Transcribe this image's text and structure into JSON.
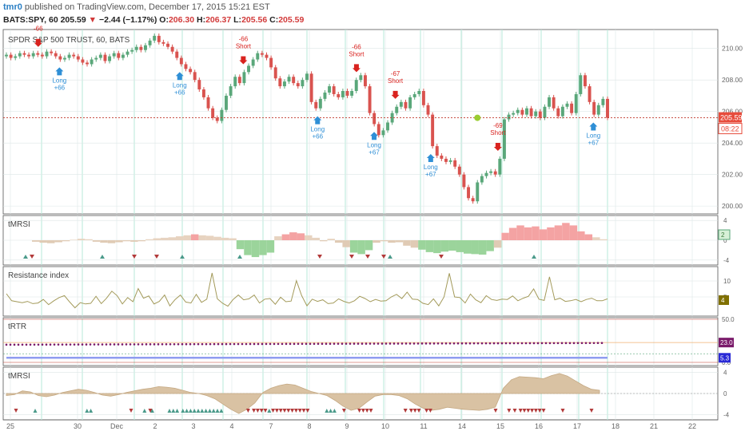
{
  "header": {
    "author": "tmr0",
    "published": "published on TradingView.com, December 17, 2015 15:21 EST",
    "symbol": "BATS:SPY, 60",
    "last": "205.59",
    "arrow": "▼",
    "change": "−2.44 (−1.17%)",
    "o_label": "O:",
    "o_value": "206.30",
    "h_label": "H:",
    "h_value": "206.37",
    "l_label": "L:",
    "l_value": "205.56",
    "c_label": "C:",
    "c_value": "205.59"
  },
  "colors": {
    "up": "#5aa77a",
    "down": "#d9534f",
    "grid": "#dde6e6",
    "buy_arrow": "#2f8fd6",
    "sell_arrow": "#d9231f",
    "vline": "#b7ead9"
  },
  "chart_data": [
    {
      "type": "candlestick",
      "title": "SPDR S&P 500 TRUST, 60, BATS",
      "ylim": [
        199.5,
        211.2
      ],
      "yticks": [
        "210.00",
        "208.00",
        "206.00",
        "204.00",
        "202.00",
        "200.00"
      ],
      "ytick_values": [
        210,
        208,
        206,
        204,
        202,
        200
      ],
      "last_label": "205.59",
      "countdown_label": "08:22",
      "xticks": [
        "25",
        "30",
        "Dec",
        "2",
        "3",
        "4",
        "7",
        "8",
        "9",
        "10",
        "11",
        "14",
        "15",
        "16",
        "17",
        "18",
        "21",
        "22"
      ],
      "close": [
        209.6,
        209.4,
        209.5,
        209.7,
        209.6,
        209.5,
        209.7,
        209.6,
        209.5,
        209.8,
        209.7,
        209.5,
        209.3,
        209.4,
        209.6,
        209.5,
        209.3,
        209.1,
        209.0,
        209.3,
        209.4,
        209.6,
        209.2,
        209.5,
        209.7,
        209.4,
        209.6,
        209.8,
        209.9,
        210.1,
        209.9,
        210.2,
        210.5,
        210.8,
        210.4,
        210.3,
        210.1,
        209.8,
        209.4,
        209.0,
        208.7,
        208.5,
        208.0,
        207.4,
        206.9,
        206.2,
        205.6,
        205.4,
        206.1,
        207.0,
        207.6,
        208.2,
        207.8,
        208.5,
        208.9,
        209.3,
        209.7,
        209.6,
        209.4,
        208.8,
        208.1,
        207.6,
        207.9,
        208.2,
        207.8,
        207.6,
        208.0,
        208.4,
        206.6,
        206.2,
        206.8,
        207.2,
        207.6,
        207.1,
        206.9,
        207.3,
        207.0,
        207.3,
        208.0,
        208.3,
        207.6,
        205.9,
        205.2,
        204.5,
        204.8,
        205.3,
        205.9,
        206.3,
        206.6,
        206.2,
        206.9,
        207.1,
        207.3,
        206.4,
        205.8,
        203.8,
        203.2,
        203.0,
        202.8,
        202.9,
        202.5,
        202.0,
        201.2,
        200.5,
        200.3,
        201.5,
        201.9,
        202.1,
        202.2,
        202.0,
        203.0,
        205.5,
        205.8,
        205.9,
        206.1,
        205.8,
        206.2,
        205.7,
        206.0,
        205.6,
        206.3,
        206.9,
        206.2,
        205.7,
        206.3,
        206.5,
        205.9,
        207.1,
        208.3,
        207.6,
        206.6,
        205.8,
        206.4,
        206.8,
        205.6
      ],
      "signals": [
        {
          "dir": "short",
          "bar": 9,
          "text": [
            "-66"
          ]
        },
        {
          "dir": "long",
          "bar": 15,
          "text": [
            "Long",
            "+66"
          ]
        },
        {
          "dir": "long",
          "bar": 49,
          "text": [
            "Long",
            "+66"
          ]
        },
        {
          "dir": "short",
          "bar": 67,
          "text": [
            "-66",
            "Short"
          ]
        },
        {
          "dir": "long",
          "bar": 88,
          "text": [
            "Long",
            "+66"
          ]
        },
        {
          "dir": "short",
          "bar": 99,
          "text": [
            "-66",
            "Short"
          ]
        },
        {
          "dir": "long",
          "bar": 104,
          "text": [
            "Long",
            "+67"
          ]
        },
        {
          "dir": "short",
          "bar": 110,
          "text": [
            "-67",
            "Short"
          ]
        },
        {
          "dir": "long",
          "bar": 120,
          "text": [
            "Long",
            "+67"
          ]
        },
        {
          "dir": "short",
          "bar": 139,
          "text": [
            "-69",
            "Short"
          ]
        },
        {
          "dir": "long",
          "bar": 166,
          "text": [
            "Long",
            "+67"
          ]
        }
      ]
    },
    {
      "type": "bar",
      "title": "tMRSI",
      "yticks": [
        "4",
        "0",
        "-4"
      ],
      "ytick_values": [
        4,
        0,
        -4
      ],
      "last_label": "2",
      "values": [
        -0.3,
        -0.5,
        -0.6,
        -0.4,
        -0.2,
        0.1,
        0.3,
        0.2,
        -0.3,
        -0.5,
        -0.6,
        -0.4,
        -0.2,
        -0.3,
        -0.2,
        0.2,
        0.4,
        0.5,
        0.6,
        0.8,
        1.0,
        1.2,
        1.0,
        0.9,
        0.7,
        0.5,
        0.4,
        -1.8,
        -3.0,
        -3.4,
        -3.0,
        -2.5,
        0.8,
        1.2,
        1.6,
        1.4,
        1.0,
        0.5,
        -0.2,
        0.3,
        -0.5,
        -1.4,
        -2.5,
        -2.8,
        -2.0,
        -0.5,
        -0.2,
        -0.5,
        -0.4,
        -1.1,
        -1.5,
        -1.9,
        -2.4,
        -2.6,
        -2.3,
        -2.1,
        -2.4,
        -2.7,
        -2.8,
        -2.9,
        -2.2,
        -1.5,
        1.5,
        2.5,
        3.0,
        2.6,
        2.8,
        2.2,
        2.6,
        3.0,
        3.5,
        3.0,
        1.8,
        1.2,
        0.6,
        0.2
      ],
      "up_markers": [
        6,
        30,
        55,
        73,
        120,
        165
      ],
      "down_markers": [
        8,
        40,
        47,
        98,
        108,
        113,
        118,
        136
      ]
    },
    {
      "type": "line",
      "title": "Resistance index",
      "yticks": [
        "10",
        "5"
      ],
      "ytick_values": [
        10,
        5
      ],
      "last_label": "4",
      "values": [
        6.0,
        3.8,
        3.5,
        3.2,
        3.6,
        2.9,
        3.1,
        4.2,
        2.6,
        3.8,
        4.8,
        5.4,
        3.4,
        1.6,
        3.2,
        2.8,
        3.0,
        5.2,
        2.9,
        4.6,
        6.8,
        5.4,
        2.8,
        4.8,
        3.5,
        7.6,
        4.6,
        5.3,
        2.8,
        3.6,
        5.6,
        2.2,
        4.2,
        5.6,
        3.4,
        3.1,
        5.8,
        3.3,
        4.3,
        12.5,
        4.4,
        3.0,
        2.1,
        4.2,
        5.6,
        4.1,
        4.4,
        5.6,
        3.1,
        4.3,
        4.5,
        2.7,
        4.9,
        3.5,
        3.7,
        10.1,
        5.4,
        2.2,
        4.3,
        3.6,
        4.1,
        2.9,
        3.1,
        4.4,
        3.6,
        3.1,
        3.8,
        5.2,
        4.5,
        3.5,
        4.2,
        3.7,
        3.8,
        5.0,
        5.8,
        4.5,
        6.5,
        4.3,
        4.2,
        3.0,
        2.6,
        4.4,
        2.2,
        5.0,
        12.4,
        5.0,
        4.8,
        3.1,
        5.9,
        4.1,
        3.2,
        5.4,
        4.2,
        3.9,
        4.3,
        4.2,
        5.3,
        3.8,
        4.6,
        5.2,
        7.5,
        4.3,
        3.9,
        11.3,
        4.1,
        4.6,
        3.6,
        3.8,
        4.2,
        3.5,
        4.2,
        4.6,
        3.8,
        3.8,
        4.4
      ]
    },
    {
      "type": "line",
      "title": "tRTR",
      "yticks": [
        "50.0",
        "0.0"
      ],
      "ytick_values": [
        50,
        0
      ],
      "labels": [
        "23.0",
        "5.3"
      ],
      "label_values": [
        23.0,
        5.3
      ]
    },
    {
      "type": "area",
      "title": "tMRSI",
      "yticks": [
        "4",
        "0",
        "-4"
      ],
      "ytick_values": [
        4,
        0,
        -4
      ],
      "values": [
        -0.4,
        -0.2,
        0.5,
        0.3,
        -0.4,
        -0.6,
        -0.3,
        0.2,
        0.5,
        0.8,
        0.6,
        0.2,
        -0.3,
        -0.5,
        -0.2,
        0.2,
        0.5,
        0.8,
        1.0,
        1.3,
        1.2,
        1.0,
        0.6,
        0.2,
        0.0,
        -0.4,
        -1.0,
        -2.0,
        -3.0,
        -3.8,
        -3.0,
        -1.8,
        0.2,
        1.0,
        1.5,
        1.8,
        1.6,
        1.0,
        0.4,
        0.0,
        -0.4,
        -1.3,
        -2.4,
        -3.2,
        -2.8,
        -1.6,
        -0.5,
        -0.2,
        -0.2,
        -0.4,
        -1.0,
        -2.0,
        -2.8,
        -3.2,
        -3.0,
        -2.6,
        -2.8,
        -3.0,
        -3.1,
        -3.2,
        -3.0,
        -2.6,
        1.0,
        2.6,
        3.2,
        3.1,
        3.0,
        2.8,
        3.4,
        3.8,
        3.3,
        2.4,
        1.5,
        0.8,
        0.6
      ],
      "up_markers": [
        15,
        42,
        44,
        72,
        76,
        85,
        87,
        89,
        92,
        94,
        96,
        98,
        100,
        102,
        104,
        106,
        108,
        110,
        112,
        137,
        167,
        169,
        171
      ],
      "down_markers": [
        5,
        65,
        75,
        126,
        129,
        131,
        133,
        135,
        139,
        141,
        143,
        145,
        147,
        149,
        151,
        153,
        155,
        157,
        176,
        184,
        186,
        188,
        190,
        208,
        211,
        213,
        215,
        219,
        221,
        255,
        262,
        265,
        268,
        270,
        272,
        274,
        276,
        278,
        280,
        290,
        305
      ]
    }
  ]
}
